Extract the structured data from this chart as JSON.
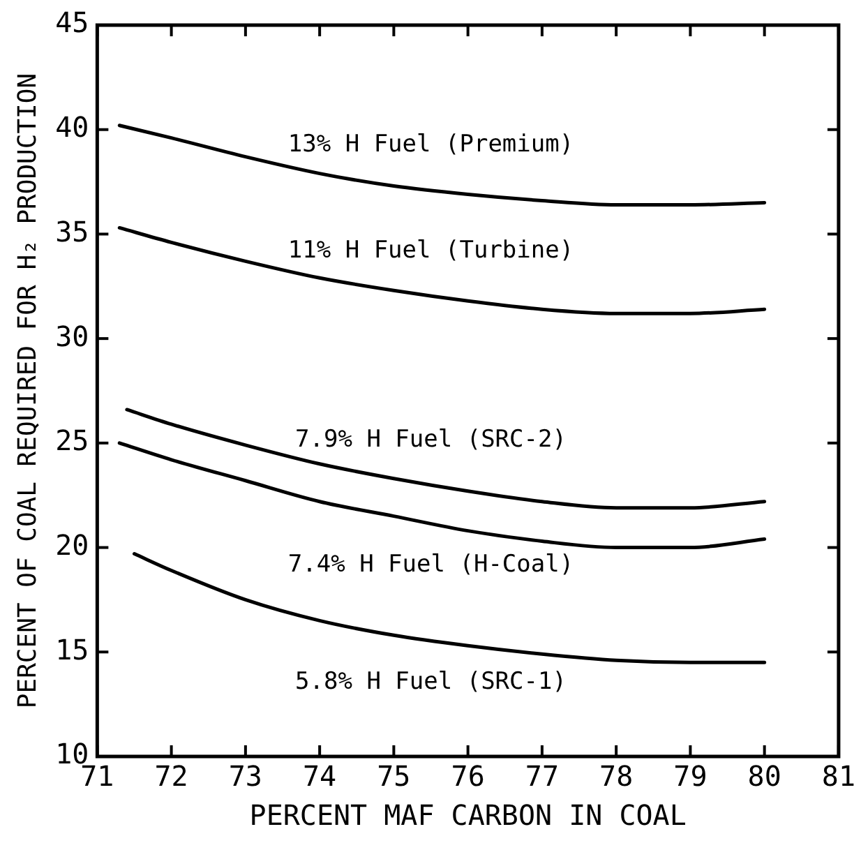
{
  "chart_data": {
    "type": "line",
    "xlabel": "PERCENT MAF CARBON IN COAL",
    "ylabel": "PERCENT OF COAL REQUIRED FOR H₂ PRODUCTION",
    "xlim": [
      71,
      81
    ],
    "xticks": [
      71,
      72,
      73,
      74,
      75,
      76,
      77,
      78,
      79,
      80,
      81
    ],
    "ylim": [
      10,
      45
    ],
    "yticks": [
      10,
      15,
      20,
      25,
      30,
      35,
      40,
      45
    ],
    "legend": false,
    "marker": "none",
    "line_style": "solid",
    "series": [
      {
        "name": "13% H Fuel (Premium)",
        "color": "#000000",
        "x": [
          71.3,
          72,
          73,
          74,
          75,
          76,
          77,
          78,
          79,
          80
        ],
        "values": [
          40.2,
          39.6,
          38.7,
          37.9,
          37.3,
          36.9,
          36.6,
          36.4,
          36.4,
          36.5
        ]
      },
      {
        "name": "11% H Fuel (Turbine)",
        "color": "#000000",
        "x": [
          71.3,
          72,
          73,
          74,
          75,
          76,
          77,
          78,
          79,
          80
        ],
        "values": [
          35.3,
          34.6,
          33.7,
          32.9,
          32.3,
          31.8,
          31.4,
          31.2,
          31.2,
          31.4
        ]
      },
      {
        "name": "7.9% H Fuel (SRC-2)",
        "color": "#000000",
        "x": [
          71.4,
          72,
          73,
          74,
          75,
          76,
          77,
          78,
          79,
          80
        ],
        "values": [
          26.6,
          25.9,
          24.9,
          24.0,
          23.3,
          22.7,
          22.2,
          21.9,
          21.9,
          22.2
        ]
      },
      {
        "name": "7.4% H Fuel (H-Coal)",
        "color": "#000000",
        "x": [
          71.3,
          72,
          73,
          74,
          75,
          76,
          77,
          78,
          79,
          80
        ],
        "values": [
          25.0,
          24.2,
          23.2,
          22.2,
          21.5,
          20.8,
          20.3,
          20.0,
          20.0,
          20.4
        ]
      },
      {
        "name": "5.8% H Fuel (SRC-1)",
        "color": "#000000",
        "x": [
          71.5,
          72,
          73,
          74,
          75,
          76,
          77,
          78,
          79,
          80
        ],
        "values": [
          19.7,
          18.9,
          17.5,
          16.5,
          15.8,
          15.3,
          14.9,
          14.6,
          14.5,
          14.5
        ]
      }
    ]
  }
}
